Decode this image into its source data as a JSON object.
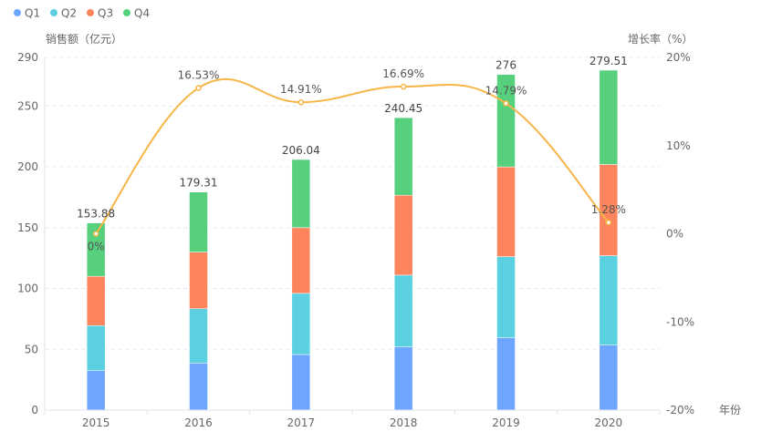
{
  "chart_data": {
    "type": "bar",
    "stacked": true,
    "categories": [
      "2015",
      "2016",
      "2017",
      "2018",
      "2019",
      "2020"
    ],
    "series": [
      {
        "name": "Q1",
        "color": "#6ea6ff",
        "values": [
          32.5,
          38.7,
          45.7,
          52.0,
          59.5,
          53.5
        ]
      },
      {
        "name": "Q2",
        "color": "#5ad0e0",
        "values": [
          37.0,
          44.7,
          50.3,
          59.0,
          66.7,
          73.5
        ]
      },
      {
        "name": "Q3",
        "color": "#fc855d",
        "values": [
          40.5,
          46.5,
          54.0,
          65.7,
          73.8,
          75.0
        ]
      },
      {
        "name": "Q4",
        "color": "#57d07e",
        "values": [
          43.88,
          49.41,
          56.04,
          63.75,
          76.0,
          77.51
        ]
      }
    ],
    "totals": [
      "153.88",
      "179.31",
      "206.04",
      "240.45",
      "276",
      "279.51"
    ],
    "line": {
      "name": "增长率",
      "color": "#f7b547",
      "values": [
        0,
        16.53,
        14.91,
        16.69,
        14.79,
        1.28
      ],
      "labels": [
        "0%",
        "16.53%",
        "14.91%",
        "16.69%",
        "14.79%",
        "1.28%"
      ]
    },
    "ylabel": "销售额（亿元）",
    "ylabel_right": "增长率（%）",
    "xlabel": "年份",
    "ylim": [
      0,
      290
    ],
    "yticks": [
      "0",
      "50",
      "100",
      "150",
      "200",
      "250",
      "290"
    ],
    "ytick_values": [
      0,
      50,
      100,
      150,
      200,
      250,
      290
    ],
    "ylim_right": [
      -20,
      20
    ],
    "yticks_right": [
      "-20%",
      "-10%",
      "0%",
      "10%",
      "20%"
    ],
    "ytick_right_values": [
      -20,
      -10,
      0,
      10,
      20
    ],
    "legend_position": "top-left",
    "grid": true
  }
}
